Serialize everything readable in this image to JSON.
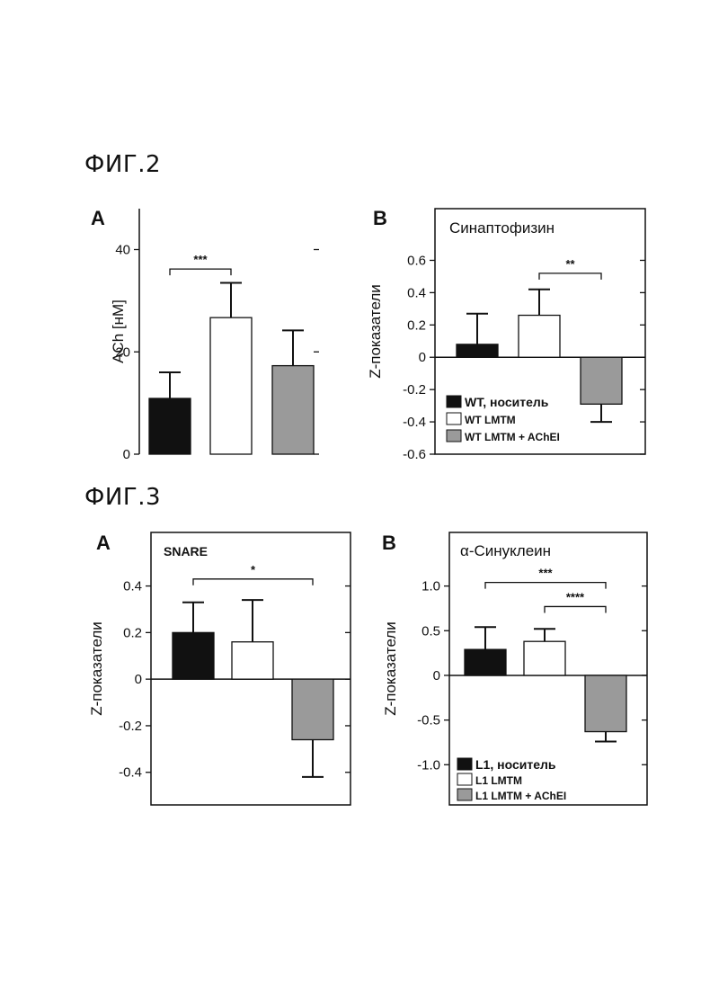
{
  "figures": [
    {
      "title": "ФИГ.2"
    },
    {
      "title": "ФИГ.3"
    }
  ],
  "colors": {
    "vehicle": "#111111",
    "lmtm": "#ffffff",
    "lmtm_acheI": "#9a9a9a",
    "axis": "#111111"
  },
  "chart_data": [
    {
      "type": "bar",
      "panel": "A",
      "figure": "ФИГ.2",
      "title": "",
      "ylabel": "ACh [нМ]",
      "xlabel": "",
      "ylim": [
        0,
        48
      ],
      "yticks": [
        0,
        20,
        40
      ],
      "ytick_labels": [
        "0",
        "20",
        "40"
      ],
      "categories": [
        "",
        "",
        ""
      ],
      "values": [
        10.9,
        26.7,
        17.3
      ],
      "errors": [
        5.1,
        6.8,
        6.9
      ],
      "bar_colors": [
        "#111111",
        "#ffffff",
        "#9a9a9a"
      ],
      "significance": [
        {
          "from": 0,
          "to": 1,
          "label": "***",
          "y": 36.2
        }
      ],
      "legend": null,
      "frame": "left-only"
    },
    {
      "type": "bar",
      "panel": "B",
      "figure": "ФИГ.2",
      "title": "Синаптофизин",
      "ylabel": "Z-показатели",
      "xlabel": "",
      "ylim": [
        -0.6,
        0.92
      ],
      "yticks": [
        -0.6,
        -0.4,
        -0.2,
        0,
        0.2,
        0.4,
        0.6
      ],
      "ytick_labels": [
        "-0.6",
        "-0.4",
        "-0.2",
        "0",
        "0.2",
        "0.4",
        "0.6"
      ],
      "categories": [
        "",
        "",
        ""
      ],
      "values": [
        0.08,
        0.26,
        -0.29
      ],
      "errors": [
        0.19,
        0.16,
        0.11
      ],
      "bar_colors": [
        "#111111",
        "#ffffff",
        "#9a9a9a"
      ],
      "significance": [
        {
          "from": 1,
          "to": 2,
          "label": "**",
          "y": 0.52
        }
      ],
      "legend": {
        "placement": "bottom-left",
        "entries": [
          "WT, носитель",
          "WT  LMTM",
          "WT  LMTM + AChEI"
        ]
      },
      "frame": "box"
    },
    {
      "type": "bar",
      "panel": "A",
      "figure": "ФИГ.3",
      "title": "SNARE",
      "ylabel": "Z-показатели",
      "xlabel": "",
      "ylim": [
        -0.54,
        0.63
      ],
      "yticks": [
        -0.4,
        -0.2,
        0,
        0.2,
        0.4
      ],
      "ytick_labels": [
        "-0.4",
        "-0.2",
        "0",
        "0.2",
        "0.4"
      ],
      "categories": [
        "",
        "",
        ""
      ],
      "values": [
        0.2,
        0.16,
        -0.26
      ],
      "errors": [
        0.13,
        0.18,
        0.16
      ],
      "bar_colors": [
        "#111111",
        "#ffffff",
        "#9a9a9a"
      ],
      "significance": [
        {
          "from": 0,
          "to": 2,
          "label": "*",
          "y": 0.43
        }
      ],
      "legend": null,
      "frame": "box"
    },
    {
      "type": "bar",
      "panel": "B",
      "figure": "ФИГ.3",
      "title": "α-Синуклеин",
      "ylabel": "Z-показатели",
      "xlabel": "",
      "ylim": [
        -1.45,
        1.6
      ],
      "yticks": [
        -1.0,
        -0.5,
        0,
        0.5,
        1.0
      ],
      "ytick_labels": [
        "-1.0",
        "-0.5",
        "0",
        "0.5",
        "1.0"
      ],
      "categories": [
        "",
        "",
        ""
      ],
      "values": [
        0.29,
        0.38,
        -0.63
      ],
      "errors": [
        0.25,
        0.14,
        0.11
      ],
      "bar_colors": [
        "#111111",
        "#ffffff",
        "#9a9a9a"
      ],
      "significance": [
        {
          "from": 0,
          "to": 2,
          "label": "***",
          "y": 1.04
        },
        {
          "from": 1,
          "to": 2,
          "label": "****",
          "y": 0.77
        }
      ],
      "legend": {
        "placement": "bottom-left",
        "entries": [
          "L1, носитель",
          "L1  LMTM",
          "L1  LMTM + AChEI"
        ]
      },
      "frame": "box"
    }
  ]
}
